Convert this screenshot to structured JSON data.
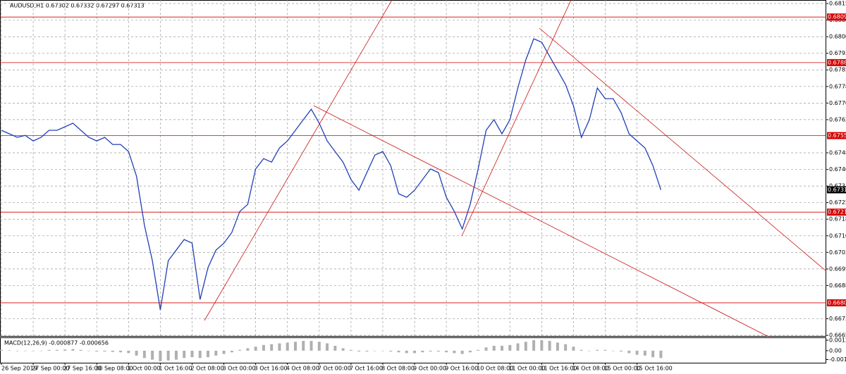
{
  "chart_data": [
    {
      "type": "line",
      "title": "AUDUSD,H1  0.67302 0.67332 0.67297 0.67313",
      "color": "#2040b8",
      "grid": true,
      "categories": [
        "26 Sep 2019",
        null,
        null,
        null,
        "27 Sep 00:00",
        null,
        null,
        null,
        "27 Sep 16:00",
        null,
        null,
        null,
        "30 Sep 08:00",
        null,
        null,
        null,
        "1 Oct 00:00",
        null,
        null,
        null,
        "1 Oct 16:00",
        null,
        null,
        null,
        "2 Oct 08:00",
        null,
        null,
        null,
        "3 Oct 00:00",
        null,
        null,
        null,
        "3 Oct 16:00",
        null,
        null,
        null,
        "4 Oct 08:00",
        null,
        null,
        null,
        "7 Oct 00:00",
        null,
        null,
        null,
        "7 Oct 16:00",
        null,
        null,
        null,
        "8 Oct 08:00",
        null,
        null,
        null,
        "9 Oct 00:00",
        null,
        null,
        null,
        "9 Oct 16:00",
        null,
        null,
        null,
        "10 Oct 08:00",
        null,
        null,
        null,
        "11 Oct 00:00",
        null,
        null,
        null,
        "11 Oct 16:00",
        null,
        null,
        null,
        "14 Oct 08:00",
        null,
        null,
        null,
        "15 Oct 00:00",
        null,
        null,
        null,
        "15 Oct 16:00",
        null,
        null,
        null
      ],
      "values": [
        0.67582,
        0.67566,
        0.6755,
        0.67559,
        0.67534,
        0.6755,
        0.67582,
        0.67582,
        0.67598,
        0.67614,
        0.67582,
        0.6755,
        0.67534,
        0.6755,
        0.67518,
        0.67518,
        0.67486,
        0.67375,
        0.67152,
        0.66993,
        0.6677,
        0.66993,
        0.6704,
        0.67088,
        0.67072,
        0.66817,
        0.66961,
        0.6704,
        0.67072,
        0.6712,
        0.67215,
        0.67247,
        0.67407,
        0.67454,
        0.67438,
        0.67502,
        0.67534,
        0.67582,
        0.6763,
        0.67677,
        0.67614,
        0.67534,
        0.67486,
        0.67438,
        0.67359,
        0.67311,
        0.67391,
        0.6747,
        0.67486,
        0.67422,
        0.67295,
        0.67279,
        0.67311,
        0.67359,
        0.67407,
        0.67391,
        0.67279,
        0.67215,
        0.67136,
        0.67247,
        0.67407,
        0.67582,
        0.6763,
        0.67566,
        0.6763,
        0.67773,
        0.679,
        0.67996,
        0.6798,
        0.67916,
        0.67853,
        0.67789,
        0.67693,
        0.6755,
        0.6763,
        0.67773,
        0.67725,
        0.67725,
        0.67661,
        0.67566,
        0.67534,
        0.67502,
        0.67422,
        0.67313
      ],
      "ylim": [
        0.66649,
        0.68171
      ],
      "yticks": [
        0.68155,
        {
          "value": 0.6808,
          "label": "0.68080"
        },
        0.68005,
        {
          "value": 0.6793,
          "label": "0.67930"
        },
        0.67855,
        {
          "value": 0.6778,
          "label": "0.67780"
        },
        0.67705,
        {
          "value": 0.6763,
          "label": "0.67630"
        },
        {
          "value": 0.6748,
          "label": "0.67480"
        },
        0.67405,
        {
          "value": 0.6733,
          "label": "0.67330"
        },
        0.67255,
        {
          "value": 0.6718,
          "label": "0.67180"
        },
        0.67105,
        {
          "value": 0.6703,
          "label": "0.67030"
        },
        0.66955,
        {
          "value": 0.6688,
          "label": "0.66880"
        },
        {
          "value": 0.6673,
          "label": "0.66730"
        },
        0.66655
      ],
      "levels": [
        0.68094,
        0.67888,
        0.67558,
        0.67212,
        0.66802
      ],
      "level_color": "#d40000",
      "last_price": 0.67313
    },
    {
      "type": "bar",
      "title": "MACD(12,26,9) -0.000877 -0.000656",
      "color": "#b0b0b0",
      "values": [
        0.0001,
        5e-05,
        -5e-05,
        0,
        -5e-05,
        0,
        0.0001,
        0.0001,
        0.00015,
        0.0002,
        0.0001,
        0,
        -0.0001,
        -0.0001,
        -0.00015,
        -0.0002,
        -0.0003,
        -0.0006,
        -0.0009,
        -0.0011,
        -0.0013,
        -0.0012,
        -0.0011,
        -0.0009,
        -0.0008,
        -0.0009,
        -0.0008,
        -0.0006,
        -0.0004,
        -0.0002,
        0.0001,
        0.0003,
        0.0005,
        0.0007,
        0.0008,
        0.0009,
        0.001,
        0.0011,
        0.0012,
        0.0012,
        0.0011,
        0.0009,
        0.0006,
        0.0003,
        0.0001,
        -0.0001,
        -0.0001,
        0,
        0,
        -0.0001,
        -0.0002,
        -0.0003,
        -0.0003,
        -0.0002,
        -0.0001,
        -0.0001,
        -0.0002,
        -0.0003,
        -0.0004,
        -0.0002,
        0.0001,
        0.0004,
        0.0006,
        0.0006,
        0.0007,
        0.0009,
        0.0011,
        0.0013,
        0.0013,
        0.0012,
        0.001,
        0.0008,
        0.0005,
        0.0001,
        0,
        0.0001,
        0.0001,
        0,
        -0.0001,
        -0.0003,
        -0.0005,
        -0.0006,
        -0.0008,
        -0.0009
      ],
      "ylim": [
        -0.00148,
        0.00155
      ],
      "yticks": [
        0.001292,
        {
          "value": 0,
          "label": "0.00"
        },
        -0.00109
      ]
    }
  ]
}
